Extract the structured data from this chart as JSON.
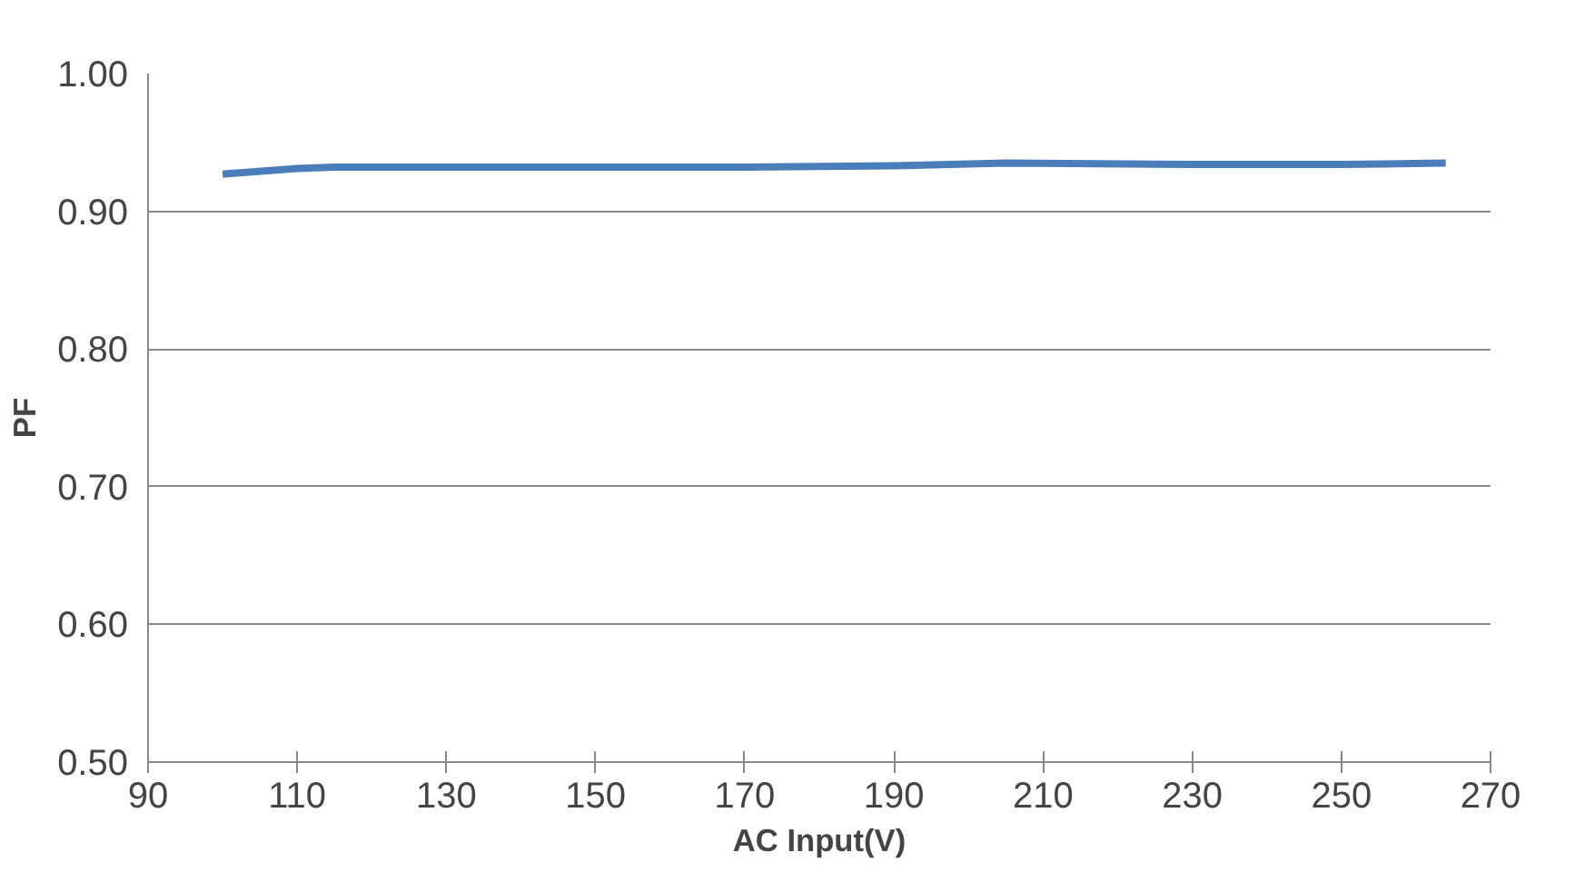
{
  "chart_data": {
    "type": "line",
    "xlabel": "AC Input(V)",
    "ylabel": "PF",
    "x": [
      100,
      110,
      115,
      130,
      150,
      170,
      190,
      205,
      230,
      250,
      264
    ],
    "series": [
      {
        "color": "#4a7ebb",
        "values": [
          0.927,
          0.931,
          0.932,
          0.932,
          0.932,
          0.932,
          0.933,
          0.935,
          0.934,
          0.934,
          0.935
        ]
      }
    ],
    "xlim": [
      90,
      270
    ],
    "xticks": [
      90,
      110,
      130,
      150,
      170,
      190,
      210,
      230,
      250,
      270
    ],
    "ylim": [
      0.5,
      1.0
    ],
    "yticks": [
      {
        "value": 0.5,
        "label": "0.50"
      },
      {
        "value": 0.6,
        "label": "0.60"
      },
      {
        "value": 0.7,
        "label": "0.70"
      },
      {
        "value": 0.8,
        "label": "0.80"
      },
      {
        "value": 0.9,
        "label": "0.90"
      },
      {
        "value": 1.0,
        "label": "1.00"
      }
    ],
    "grid": "y",
    "marker": "none",
    "line_style": "solid"
  }
}
